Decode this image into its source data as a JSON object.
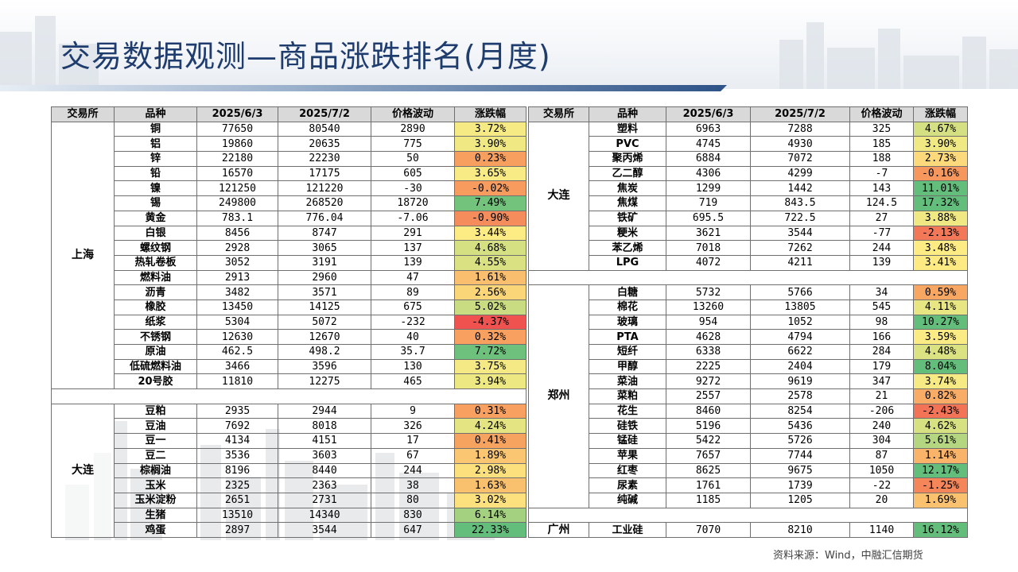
{
  "title": "交易数据观测—商品涨跌排名(月度)",
  "source": "资料来源：Wind，中融汇信期货",
  "colors": {
    "title": "#1f3c6e",
    "pos_high": "#5cb85c",
    "neg_high": "#f0524f"
  },
  "headers": {
    "left": [
      "交易所",
      "品种",
      "2025/6/3",
      "2025/7/2",
      "价格波动",
      "涨跌幅"
    ],
    "right": [
      "交易所",
      "品种",
      "2025/6/3",
      "2025/7/2",
      "价格波动",
      "涨跌幅"
    ]
  },
  "left_groups": [
    {
      "exchange": "上海",
      "rows": [
        [
          "铜",
          "77650",
          "80540",
          "2890",
          "3.72%"
        ],
        [
          "铝",
          "19860",
          "20635",
          "775",
          "3.90%"
        ],
        [
          "锌",
          "22180",
          "22230",
          "50",
          "0.23%"
        ],
        [
          "铅",
          "16570",
          "17175",
          "605",
          "3.65%"
        ],
        [
          "镍",
          "121250",
          "121220",
          "-30",
          "-0.02%"
        ],
        [
          "锡",
          "249800",
          "268520",
          "18720",
          "7.49%"
        ],
        [
          "黄金",
          "783.1",
          "776.04",
          "-7.06",
          "-0.90%"
        ],
        [
          "白银",
          "8456",
          "8747",
          "291",
          "3.44%"
        ],
        [
          "螺纹钢",
          "2928",
          "3065",
          "137",
          "4.68%"
        ],
        [
          "热轧卷板",
          "3052",
          "3191",
          "139",
          "4.55%"
        ],
        [
          "燃料油",
          "2913",
          "2960",
          "47",
          "1.61%"
        ],
        [
          "沥青",
          "3482",
          "3571",
          "89",
          "2.56%"
        ],
        [
          "橡胶",
          "13450",
          "14125",
          "675",
          "5.02%"
        ],
        [
          "纸浆",
          "5304",
          "5072",
          "-232",
          "-4.37%"
        ],
        [
          "不锈钢",
          "12630",
          "12670",
          "40",
          "0.32%"
        ],
        [
          "原油",
          "462.5",
          "498.2",
          "35.7",
          "7.72%"
        ],
        [
          "低硫燃料油",
          "3466",
          "3596",
          "130",
          "3.75%"
        ],
        [
          "20号胶",
          "11810",
          "12275",
          "465",
          "3.94%"
        ]
      ]
    },
    {
      "exchange": "大连",
      "rows": [
        [
          "豆粕",
          "2935",
          "2944",
          "9",
          "0.31%"
        ],
        [
          "豆油",
          "7692",
          "8018",
          "326",
          "4.24%"
        ],
        [
          "豆一",
          "4134",
          "4151",
          "17",
          "0.41%"
        ],
        [
          "豆二",
          "3536",
          "3603",
          "67",
          "1.89%"
        ],
        [
          "棕榈油",
          "8196",
          "8440",
          "244",
          "2.98%"
        ],
        [
          "玉米",
          "2325",
          "2363",
          "38",
          "1.63%"
        ],
        [
          "玉米淀粉",
          "2651",
          "2731",
          "80",
          "3.02%"
        ],
        [
          "生猪",
          "13510",
          "14340",
          "830",
          "6.14%"
        ],
        [
          "鸡蛋",
          "2897",
          "3544",
          "647",
          "22.33%"
        ]
      ]
    }
  ],
  "right_groups": [
    {
      "exchange": "大连",
      "rows": [
        [
          "塑料",
          "6963",
          "7288",
          "325",
          "4.67%"
        ],
        [
          "PVC",
          "4745",
          "4930",
          "185",
          "3.90%"
        ],
        [
          "聚丙烯",
          "6884",
          "7072",
          "188",
          "2.73%"
        ],
        [
          "乙二醇",
          "4306",
          "4299",
          "-7",
          "-0.16%"
        ],
        [
          "焦炭",
          "1299",
          "1442",
          "143",
          "11.01%"
        ],
        [
          "焦煤",
          "719",
          "843.5",
          "124.5",
          "17.32%"
        ],
        [
          "铁矿",
          "695.5",
          "722.5",
          "27",
          "3.88%"
        ],
        [
          "粳米",
          "3621",
          "3544",
          "-77",
          "-2.13%"
        ],
        [
          "苯乙烯",
          "7018",
          "7262",
          "244",
          "3.48%"
        ],
        [
          "LPG",
          "4072",
          "4211",
          "139",
          "3.41%"
        ]
      ]
    },
    {
      "exchange": "郑州",
      "rows": [
        [
          "白糖",
          "5732",
          "5766",
          "34",
          "0.59%"
        ],
        [
          "棉花",
          "13260",
          "13805",
          "545",
          "4.11%"
        ],
        [
          "玻璃",
          "954",
          "1052",
          "98",
          "10.27%"
        ],
        [
          "PTA",
          "4628",
          "4794",
          "166",
          "3.59%"
        ],
        [
          "短纤",
          "6338",
          "6622",
          "284",
          "4.48%"
        ],
        [
          "甲醇",
          "2225",
          "2404",
          "179",
          "8.04%"
        ],
        [
          "菜油",
          "9272",
          "9619",
          "347",
          "3.74%"
        ],
        [
          "菜粕",
          "2557",
          "2578",
          "21",
          "0.82%"
        ],
        [
          "花生",
          "8460",
          "8254",
          "-206",
          "-2.43%"
        ],
        [
          "硅铁",
          "5196",
          "5436",
          "240",
          "4.62%"
        ],
        [
          "锰硅",
          "5422",
          "5726",
          "304",
          "5.61%"
        ],
        [
          "苹果",
          "7657",
          "7744",
          "87",
          "1.14%"
        ],
        [
          "红枣",
          "8625",
          "9675",
          "1050",
          "12.17%"
        ],
        [
          "尿素",
          "1761",
          "1739",
          "-22",
          "-1.25%"
        ],
        [
          "纯碱",
          "1185",
          "1205",
          "20",
          "1.69%"
        ]
      ]
    },
    {
      "exchange": "广州",
      "rows": [
        [
          "工业硅",
          "7070",
          "8210",
          "1140",
          "16.12%"
        ]
      ]
    }
  ]
}
